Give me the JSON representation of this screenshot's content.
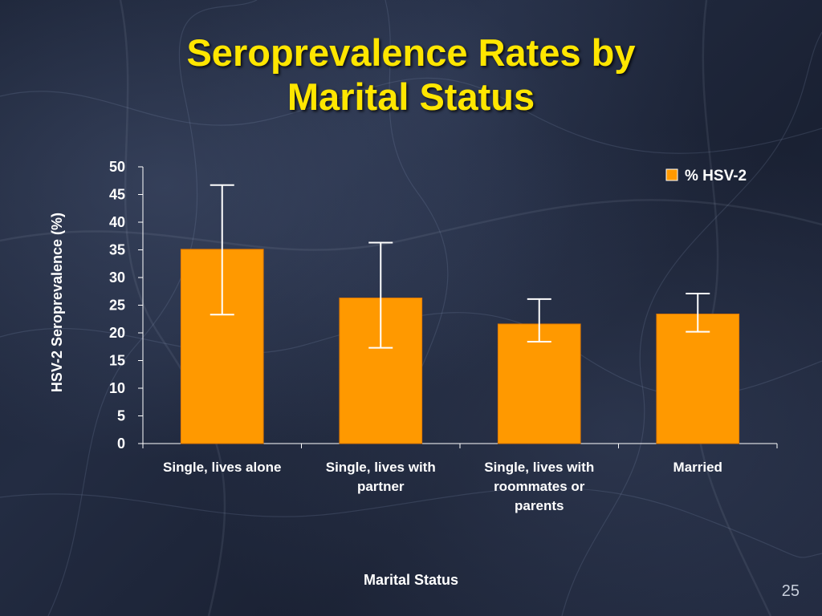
{
  "slide": {
    "title_line1": "Seroprevalence Rates by",
    "title_line2": "Marital Status",
    "page_number": "25"
  },
  "colors": {
    "title": "#ffe600",
    "bar": "#ff9900",
    "error_bar": "#ffffff",
    "text": "#ffffff"
  },
  "chart_data": {
    "type": "bar",
    "title": "",
    "xlabel": "Marital Status",
    "ylabel": "HSV-2 Seroprevalence  (%)",
    "ylim": [
      0,
      50
    ],
    "yticks": [
      0,
      5,
      10,
      15,
      20,
      25,
      30,
      35,
      40,
      45,
      50
    ],
    "categories": [
      "Single, lives alone",
      "Single, lives with partner",
      "Single, lives with roommates or parents",
      "Married"
    ],
    "category_lines": [
      [
        "Single, lives alone"
      ],
      [
        "Single, lives with",
        "partner"
      ],
      [
        "Single, lives with",
        "roommates or",
        "parents"
      ],
      [
        "Married"
      ]
    ],
    "series": [
      {
        "name": "% HSV-2",
        "values": [
          35.1,
          26.3,
          21.6,
          23.4
        ],
        "error_low": [
          23.3,
          17.3,
          18.4,
          20.2
        ],
        "error_high": [
          46.7,
          36.3,
          26.1,
          27.1
        ]
      }
    ],
    "legend": {
      "position": "top-right"
    },
    "grid": false
  }
}
